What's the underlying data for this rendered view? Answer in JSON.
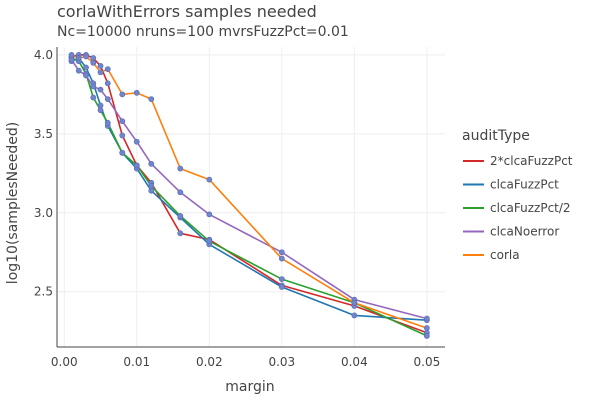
{
  "chart_data": {
    "type": "line",
    "title": "corlaWithErrors samples needed",
    "subtitle": "Nc=10000 nruns=100 mvrsFuzzPct=0.01",
    "xlabel": "margin",
    "ylabel": "log10(samplesNeeded)",
    "xlim": [
      -0.001,
      0.0525
    ],
    "ylim": [
      2.15,
      4.05
    ],
    "xticks": [
      0,
      0.01,
      0.02,
      0.03,
      0.04,
      0.05
    ],
    "xtick_labels": [
      "0.00",
      "0.01",
      "0.02",
      "0.03",
      "0.04",
      "0.05"
    ],
    "yticks": [
      2.5,
      3.0,
      3.5,
      4.0
    ],
    "ytick_labels": [
      "2.5",
      "3.0",
      "3.5",
      "4.0"
    ],
    "legend_title": "auditType",
    "marker_color": "#6f86cf",
    "series": [
      {
        "name": "2*clcaFuzzPct",
        "color": "#d62728",
        "x": [
          0.001,
          0.002,
          0.003,
          0.004,
          0.005,
          0.006,
          0.008,
          0.01,
          0.012,
          0.016,
          0.02,
          0.03,
          0.04,
          0.05
        ],
        "y": [
          3.99,
          4.0,
          4.0,
          3.98,
          3.93,
          3.82,
          3.49,
          3.3,
          3.19,
          2.87,
          2.83,
          2.54,
          2.41,
          2.24
        ]
      },
      {
        "name": "clcaFuzzPct",
        "color": "#1f77b4",
        "x": [
          0.001,
          0.002,
          0.003,
          0.004,
          0.005,
          0.006,
          0.008,
          0.01,
          0.012,
          0.016,
          0.02,
          0.03,
          0.04,
          0.05
        ],
        "y": [
          3.96,
          3.98,
          3.92,
          3.82,
          3.68,
          3.55,
          3.38,
          3.28,
          3.14,
          2.97,
          2.8,
          2.53,
          2.35,
          2.32
        ]
      },
      {
        "name": "clcaFuzzPct/2",
        "color": "#2ca02c",
        "x": [
          0.001,
          0.002,
          0.003,
          0.004,
          0.005,
          0.006,
          0.008,
          0.01,
          0.012,
          0.016,
          0.02,
          0.03,
          0.04,
          0.05
        ],
        "y": [
          3.98,
          3.96,
          3.88,
          3.73,
          3.65,
          3.57,
          3.38,
          3.3,
          3.17,
          2.98,
          2.82,
          2.58,
          2.43,
          2.22
        ]
      },
      {
        "name": "clcaNoerror",
        "color": "#9467bd",
        "x": [
          0.001,
          0.002,
          0.003,
          0.004,
          0.005,
          0.006,
          0.008,
          0.01,
          0.012,
          0.016,
          0.02,
          0.03,
          0.04,
          0.05
        ],
        "y": [
          3.97,
          3.9,
          3.87,
          3.8,
          3.78,
          3.72,
          3.58,
          3.45,
          3.31,
          3.13,
          2.99,
          2.75,
          2.45,
          2.33
        ]
      },
      {
        "name": "corla",
        "color": "#ff7f0e",
        "x": [
          0.001,
          0.002,
          0.003,
          0.004,
          0.005,
          0.006,
          0.008,
          0.01,
          0.012,
          0.016,
          0.02,
          0.03,
          0.04,
          0.05
        ],
        "y": [
          4.0,
          3.98,
          3.99,
          3.95,
          3.89,
          3.91,
          3.75,
          3.76,
          3.72,
          3.28,
          3.21,
          2.71,
          2.43,
          2.27
        ]
      }
    ]
  }
}
